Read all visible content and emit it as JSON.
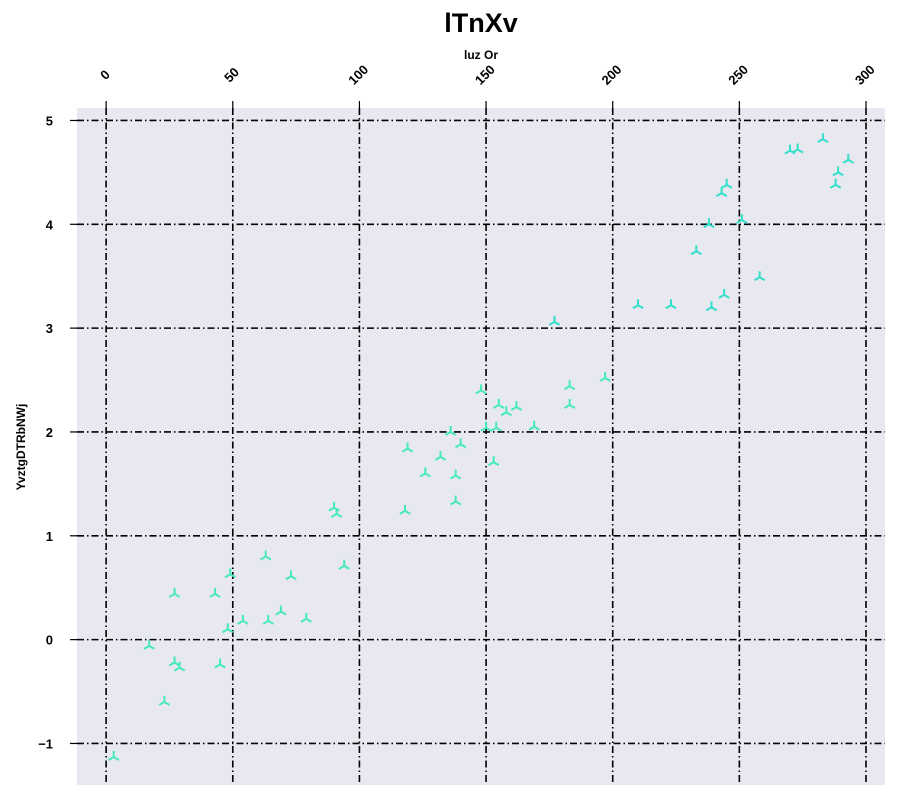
{
  "chart_data": {
    "type": "scatter",
    "title": "lTnXv",
    "xlabel": "luz Or",
    "ylabel": "YvztgDTRbNWj",
    "xlim": [
      -11.5,
      307.5
    ],
    "ylim": [
      -1.4,
      5.12
    ],
    "x_ticks": [
      0,
      50,
      100,
      150,
      200,
      250,
      300
    ],
    "y_ticks": [
      -1,
      0,
      1,
      2,
      3,
      4,
      5
    ],
    "x_axis_position": "top",
    "grid": true,
    "marker": "tri",
    "colors": {
      "background": "#ffffff",
      "plot_area": "#e8e8f1",
      "grid": "#000000",
      "marker_low": "#45eab8",
      "marker_high": "#33dfc8"
    },
    "series": [
      {
        "x": [
          3,
          17,
          23,
          27,
          29,
          27,
          43,
          45,
          48,
          49,
          54,
          63,
          64,
          69,
          73,
          79,
          90,
          91,
          94,
          118,
          119,
          126,
          132,
          136,
          138,
          138,
          140,
          148,
          150,
          153,
          154,
          155,
          158,
          162,
          169,
          177,
          183,
          183,
          197,
          210,
          223,
          233,
          238,
          239,
          243,
          244,
          245,
          251,
          258,
          270,
          273,
          283,
          288,
          289,
          293
        ],
        "y": [
          -1.13,
          -0.06,
          -0.6,
          -0.22,
          -0.27,
          0.44,
          0.44,
          -0.24,
          0.1,
          0.63,
          0.18,
          0.8,
          0.18,
          0.27,
          0.61,
          0.2,
          1.27,
          1.21,
          0.71,
          1.24,
          1.84,
          1.6,
          1.76,
          2.0,
          1.33,
          1.58,
          1.88,
          2.4,
          2.04,
          1.71,
          2.04,
          2.26,
          2.19,
          2.24,
          2.05,
          3.06,
          2.44,
          2.26,
          2.52,
          3.22,
          3.22,
          3.74,
          4.0,
          3.2,
          4.3,
          3.32,
          4.38,
          4.04,
          3.49,
          4.71,
          4.72,
          4.82,
          4.38,
          4.5,
          4.62
        ]
      }
    ]
  }
}
